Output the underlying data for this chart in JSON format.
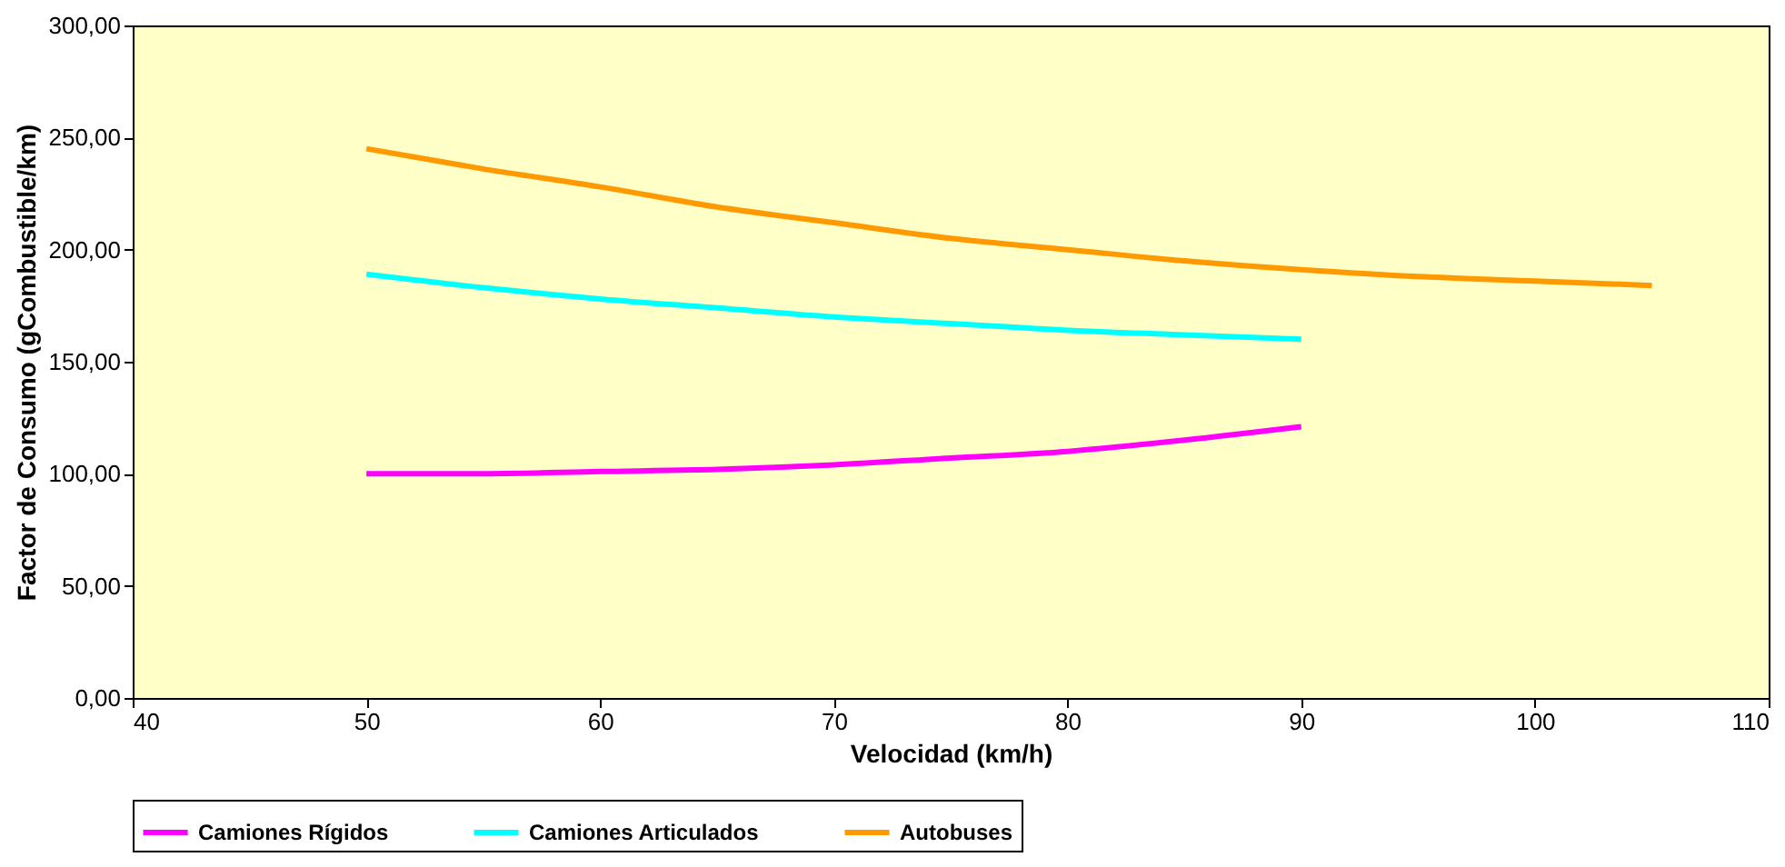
{
  "chart_data": {
    "type": "line",
    "xlabel": "Velocidad (km/h)",
    "ylabel": "Factor de Consumo (gCombustible/km)",
    "xlim": [
      40,
      110
    ],
    "xticks": [
      40,
      50,
      60,
      70,
      80,
      90,
      100,
      110
    ],
    "ylim": [
      0,
      300
    ],
    "yticks": [
      {
        "value": 0,
        "label": "0,00"
      },
      {
        "value": 50,
        "label": "50,00"
      },
      {
        "value": 100,
        "label": "100,00"
      },
      {
        "value": 150,
        "label": "150,00"
      },
      {
        "value": 200,
        "label": "200,00"
      },
      {
        "value": 250,
        "label": "250,00"
      },
      {
        "value": 300,
        "label": "300,00"
      }
    ],
    "grid": false,
    "legend": "bottom",
    "marker": "none",
    "line_style": "solid",
    "series": [
      {
        "name": "Camiones Rígidos",
        "color": "#ff00ff",
        "x": [
          50,
          55,
          60,
          65,
          70,
          75,
          80,
          85,
          90
        ],
        "values": [
          100,
          100,
          101,
          102,
          104,
          107,
          110,
          115,
          121
        ]
      },
      {
        "name": "Camiones Articulados",
        "color": "#00ffff",
        "x": [
          50,
          55,
          60,
          65,
          70,
          75,
          80,
          85,
          90
        ],
        "values": [
          189,
          183,
          178,
          174,
          170,
          167,
          164,
          162,
          160
        ]
      },
      {
        "name": "Autobuses",
        "color": "#ff9900",
        "x": [
          50,
          55,
          60,
          65,
          70,
          75,
          80,
          85,
          90,
          95,
          100,
          105
        ],
        "values": [
          245,
          236,
          228,
          219,
          212,
          205,
          200,
          195,
          191,
          188,
          186,
          184
        ]
      }
    ]
  }
}
